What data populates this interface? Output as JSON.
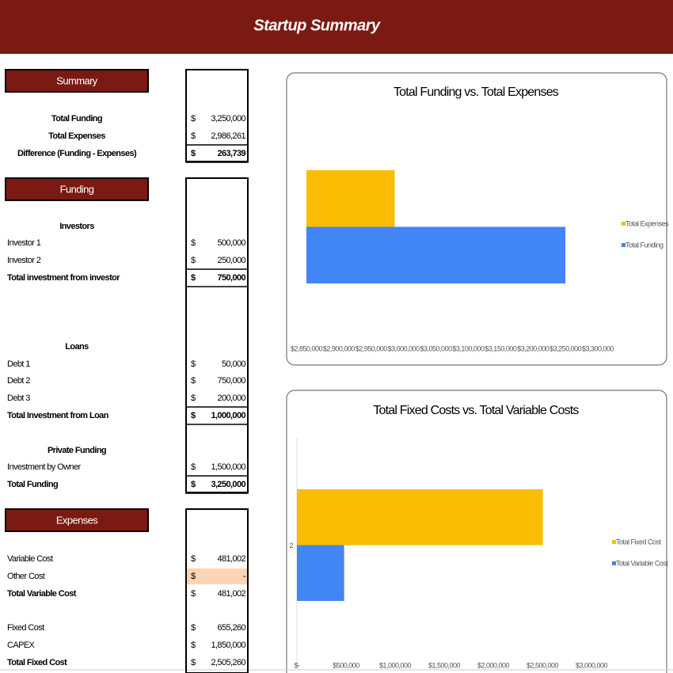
{
  "header": {
    "title": "Startup Summary"
  },
  "currency_symbol": "$",
  "sections": [
    {
      "title": "Summary",
      "rows": [
        {
          "label": "Total Funding",
          "value": "3,250,000"
        },
        {
          "label": "Total Expenses",
          "value": "2,986,261"
        },
        {
          "label": "Difference (Funding - Expenses)",
          "value": "263,739"
        }
      ]
    },
    {
      "title": "Funding",
      "rows": [
        {
          "label": "Investors"
        },
        {
          "label": "Investor 1",
          "value": "500,000"
        },
        {
          "label": "Investor 2",
          "value": "250,000"
        },
        {
          "label": "Total investment from investor",
          "value": "750,000"
        },
        {
          "label": "Loans"
        },
        {
          "label": "Debt 1",
          "value": "50,000"
        },
        {
          "label": "Debt 2",
          "value": "750,000"
        },
        {
          "label": "Debt 3",
          "value": "200,000"
        },
        {
          "label": "Total Investment from Loan",
          "value": "1,000,000"
        },
        {
          "label": "Private Funding"
        },
        {
          "label": "Investment by Owner",
          "value": "1,500,000"
        },
        {
          "label": "Total Funding",
          "value": "3,250,000"
        }
      ]
    },
    {
      "title": "Expenses",
      "rows": [
        {
          "label": "Variable Cost",
          "value": "481,002"
        },
        {
          "label": "Other Cost",
          "value": "-"
        },
        {
          "label": "Total Variable Cost",
          "value": "481,002"
        },
        {
          "label": "Fixed Cost",
          "value": "655,260"
        },
        {
          "label": "CAPEX",
          "value": "1,850,000"
        },
        {
          "label": "Total Fixed Cost",
          "value": "2,505,260"
        }
      ]
    }
  ],
  "charts": [
    {
      "type": "bar",
      "orientation": "horizontal",
      "title": "Total Funding vs. Total Expenses",
      "series": [
        {
          "name": "Total Expenses",
          "color": "#fbbc04",
          "values": [
            2986261
          ]
        },
        {
          "name": "Total Funding",
          "color": "#4285f4",
          "values": [
            3250000
          ]
        }
      ],
      "xlim": [
        2850000,
        3300000
      ],
      "xticks": [
        {
          "value": 2850000,
          "label": "$2,850,000"
        },
        {
          "value": 2900000,
          "label": "$2,900,000"
        },
        {
          "value": 2950000,
          "label": "$2,950,000"
        },
        {
          "value": 3000000,
          "label": "$3,000,000"
        },
        {
          "value": 3050000,
          "label": "$3,050,000"
        },
        {
          "value": 3100000,
          "label": "$3,100,000"
        },
        {
          "value": 3150000,
          "label": "$3,150,000"
        },
        {
          "value": 3200000,
          "label": "$3,200,000"
        },
        {
          "value": 3250000,
          "label": "$3,250,000"
        },
        {
          "value": 3300000,
          "label": "$3,300,000"
        }
      ],
      "legend": "right"
    },
    {
      "type": "bar",
      "orientation": "horizontal",
      "title": "Total Fixed Costs vs. Total Variable Costs",
      "categories": [
        "2"
      ],
      "series": [
        {
          "name": "Total Fixed Cost",
          "color": "#fbbc04",
          "values": [
            2505260
          ]
        },
        {
          "name": "Total Variable Cost",
          "color": "#4285f4",
          "values": [
            481002
          ]
        }
      ],
      "xlim": [
        0,
        3000000
      ],
      "xticks": [
        {
          "value": 0,
          "label": "$-"
        },
        {
          "value": 500000,
          "label": "$500,000"
        },
        {
          "value": 1000000,
          "label": "$1,000,000"
        },
        {
          "value": 1500000,
          "label": "$1,500,000"
        },
        {
          "value": 2000000,
          "label": "$2,000,000"
        },
        {
          "value": 2500000,
          "label": "$2,500,000"
        },
        {
          "value": 3000000,
          "label": "$3,000,000"
        }
      ],
      "legend": "right"
    }
  ]
}
